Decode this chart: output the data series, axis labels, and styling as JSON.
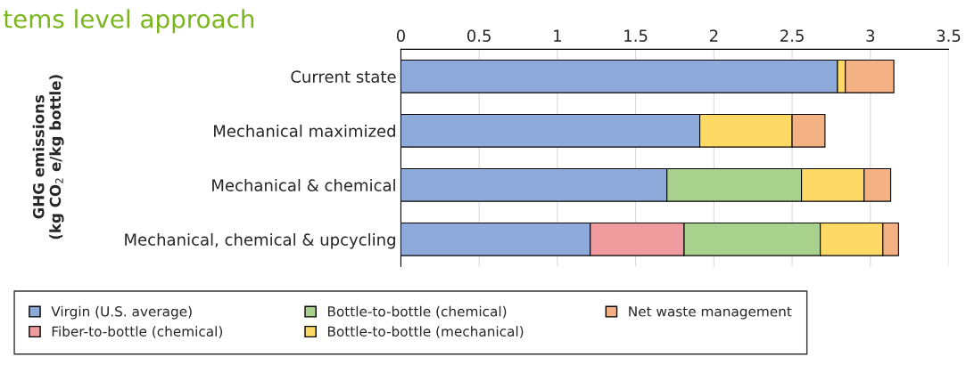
{
  "chart_data": {
    "type": "bar",
    "orientation": "horizontal",
    "stacked": true,
    "title": "tems level approach",
    "ylabel": "GHG emissions\n(kg CO$_{2}$ e/kg bottle)",
    "categories": [
      "Current state",
      "Mechanical maximized",
      "Mechanical & chemical",
      "Mechanical, chemical & upcycling"
    ],
    "series": [
      {
        "name": "Virgin (U.S. average)",
        "color": "#8eaadb",
        "values": [
          2.79,
          1.91,
          1.7,
          1.21
        ]
      },
      {
        "name": "Fiber-to-bottle (chemical)",
        "color": "#ef9a9d",
        "values": [
          null,
          null,
          null,
          0.6
        ]
      },
      {
        "name": "Bottle-to-bottle (chemical)",
        "color": "#a9d18e",
        "values": [
          null,
          null,
          0.86,
          0.87
        ]
      },
      {
        "name": "Bottle-to-bottle (mechanical)",
        "color": "#ffd966",
        "values": [
          0.05,
          0.59,
          0.4,
          0.4
        ]
      },
      {
        "name": "Net waste management",
        "color": "#f4b183",
        "values": [
          0.31,
          0.21,
          0.17,
          0.1
        ]
      }
    ],
    "xlim": [
      0,
      3.5
    ],
    "xticks": [
      0,
      0.5,
      1,
      1.5,
      2,
      2.5,
      3,
      3.5
    ],
    "grid": "x",
    "legend": "bottom"
  }
}
